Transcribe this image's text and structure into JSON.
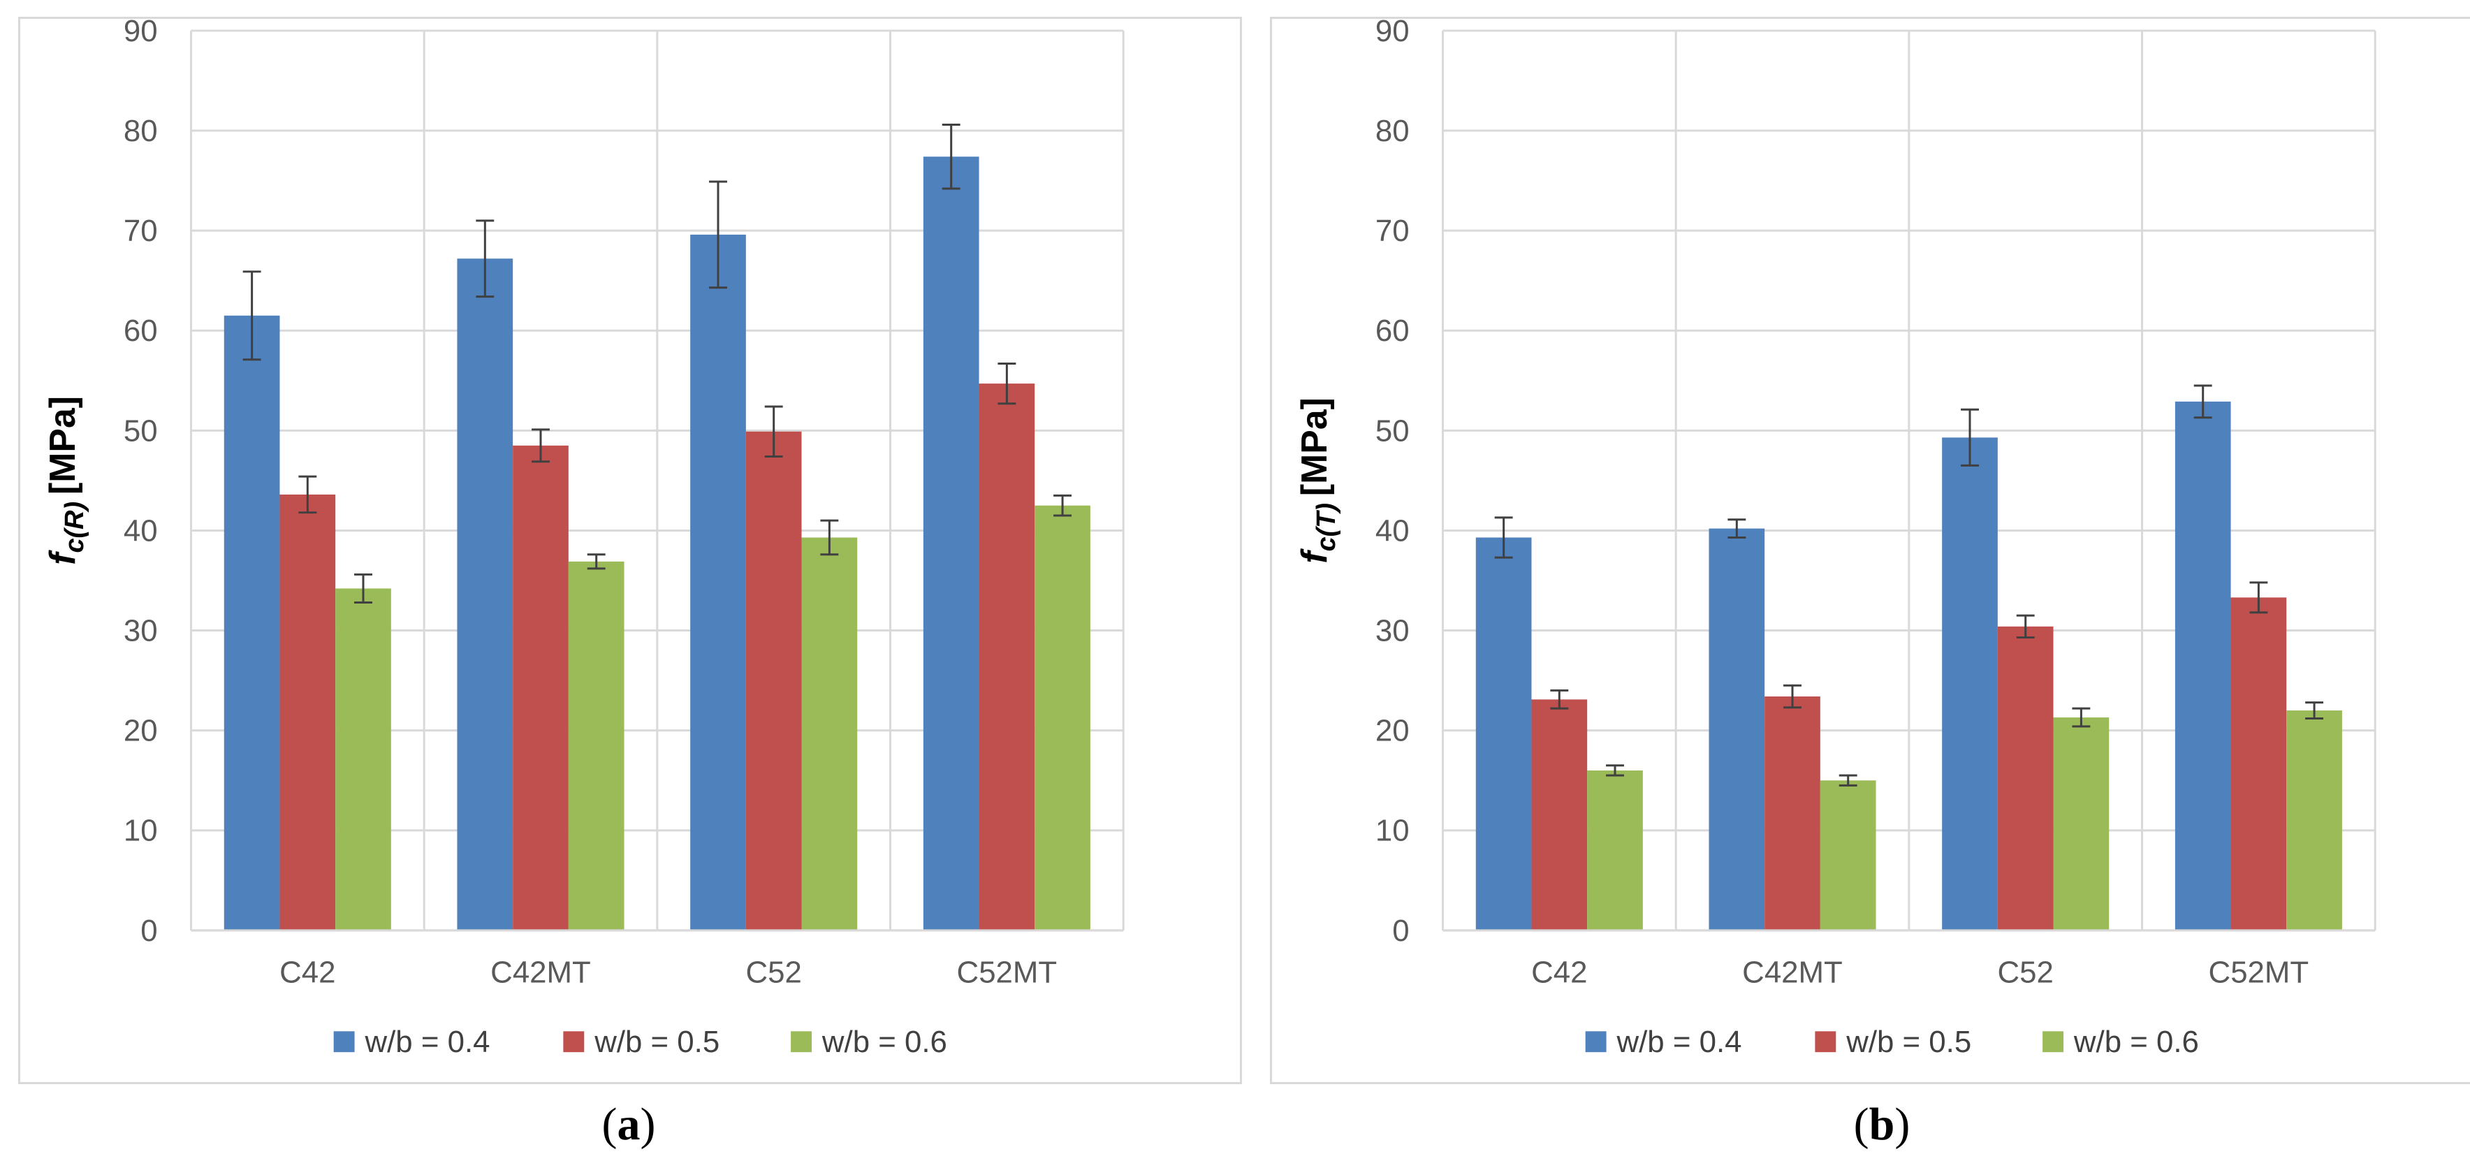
{
  "chart_data": [
    {
      "type": "bar",
      "panel": "a",
      "caption": "a",
      "ylabel_main": "f",
      "ylabel_sub": "c(R)",
      "ylabel_unit": "[MPa]",
      "ylim": [
        0,
        90
      ],
      "yticks": [
        0,
        10,
        20,
        30,
        40,
        50,
        60,
        70,
        80,
        90
      ],
      "grid": true,
      "legend_position": "bottom",
      "categories": [
        "C42",
        "C42MT",
        "C52",
        "C52MT"
      ],
      "series": [
        {
          "name": "w/b = 0.4",
          "color": "#4f81bd",
          "values": [
            61.5,
            67.2,
            69.6,
            77.4
          ],
          "errors": [
            4.4,
            3.8,
            5.3,
            3.2
          ]
        },
        {
          "name": "w/b = 0.5",
          "color": "#c0504d",
          "values": [
            43.6,
            48.5,
            49.9,
            54.7
          ],
          "errors": [
            1.8,
            1.6,
            2.5,
            2.0
          ]
        },
        {
          "name": "w/b = 0.6",
          "color": "#9bbb59",
          "values": [
            34.2,
            36.9,
            39.3,
            42.5
          ],
          "errors": [
            1.4,
            0.7,
            1.7,
            1.0
          ]
        }
      ]
    },
    {
      "type": "bar",
      "panel": "b",
      "caption": "b",
      "ylabel_main": "f",
      "ylabel_sub": "c(T)",
      "ylabel_unit": "[MPa]",
      "ylim": [
        0,
        90
      ],
      "yticks": [
        0,
        10,
        20,
        30,
        40,
        50,
        60,
        70,
        80,
        90
      ],
      "grid": true,
      "legend_position": "bottom",
      "categories": [
        "C42",
        "C42MT",
        "C52",
        "C52MT"
      ],
      "series": [
        {
          "name": "w/b = 0.4",
          "color": "#4f81bd",
          "values": [
            39.3,
            40.2,
            49.3,
            52.9
          ],
          "errors": [
            2.0,
            0.9,
            2.8,
            1.6
          ]
        },
        {
          "name": "w/b = 0.5",
          "color": "#c0504d",
          "values": [
            23.1,
            23.4,
            30.4,
            33.3
          ],
          "errors": [
            0.9,
            1.1,
            1.1,
            1.5
          ]
        },
        {
          "name": "w/b = 0.6",
          "color": "#9bbb59",
          "values": [
            16.0,
            15.0,
            21.3,
            22.0
          ],
          "errors": [
            0.5,
            0.5,
            0.9,
            0.8
          ]
        }
      ]
    }
  ]
}
